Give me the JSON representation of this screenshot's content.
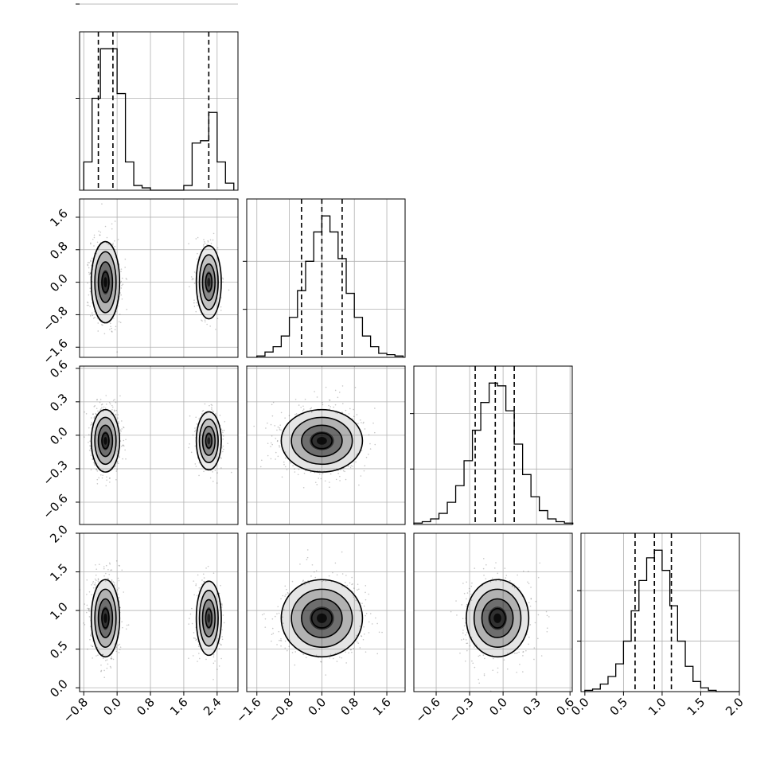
{
  "chart_data": {
    "type": "corner",
    "n_params": 4,
    "grid": true,
    "quantile_lines": "dashed",
    "contour_color": "#000000",
    "density_color": "#000000",
    "axes": [
      {
        "range": [
          -0.9,
          2.9
        ],
        "ticks": [
          -0.8,
          0.0,
          0.8,
          1.6,
          2.4
        ],
        "tick_labels": [
          "−0.8",
          "0.0",
          "0.8",
          "1.6",
          "2.4"
        ],
        "quantiles": [
          -0.45,
          -0.1,
          2.2
        ]
      },
      {
        "range": [
          -1.85,
          2.05
        ],
        "ticks": [
          -1.6,
          -0.8,
          0.0,
          0.8,
          1.6
        ],
        "tick_labels": [
          "−1.6",
          "−0.8",
          "0.0",
          "0.8",
          "1.6"
        ],
        "quantiles": [
          -0.5,
          0.0,
          0.5
        ]
      },
      {
        "range": [
          -0.8,
          0.62
        ],
        "ticks": [
          -0.6,
          -0.3,
          0.0,
          0.3,
          0.6
        ],
        "tick_labels": [
          "−0.6",
          "−0.3",
          "0.0",
          "0.3",
          "0.6"
        ],
        "quantiles": [
          -0.25,
          -0.07,
          0.1
        ]
      },
      {
        "range": [
          -0.05,
          2.0
        ],
        "ticks": [
          0.0,
          0.5,
          1.0,
          1.5,
          2.0
        ],
        "tick_labels": [
          "0.0",
          "0.5",
          "1.0",
          "1.5",
          "2.0"
        ],
        "quantiles": [
          0.65,
          0.9,
          1.12
        ]
      }
    ],
    "histograms": [
      {
        "param": 0,
        "bin_edges": [
          -0.8,
          -0.6,
          -0.4,
          -0.2,
          0.0,
          0.2,
          0.4,
          0.6,
          0.8,
          1.0,
          1.2,
          1.4,
          1.6,
          1.8,
          2.0,
          2.2,
          2.4,
          2.6,
          2.8
        ],
        "counts": [
          0.12,
          0.39,
          0.6,
          0.6,
          0.41,
          0.12,
          0.02,
          0.01,
          0,
          0,
          0,
          0,
          0.02,
          0.2,
          0.21,
          0.33,
          0.12,
          0.03
        ],
        "y_ticks": [
          0.39,
          0.79
        ]
      },
      {
        "param": 1,
        "bin_edges": [
          -1.6,
          -1.4,
          -1.2,
          -1.0,
          -0.8,
          -0.6,
          -0.4,
          -0.2,
          0.0,
          0.2,
          0.4,
          0.6,
          0.8,
          1.0,
          1.2,
          1.4,
          1.6,
          1.8,
          2.0
        ],
        "counts": [
          0.005,
          0.02,
          0.04,
          0.08,
          0.15,
          0.25,
          0.36,
          0.47,
          0.53,
          0.47,
          0.37,
          0.24,
          0.15,
          0.08,
          0.04,
          0.015,
          0.01,
          0.005
        ],
        "y_ticks": [
          0.18,
          0.36
        ]
      },
      {
        "param": 2,
        "bin_edges": [
          -0.8,
          -0.725,
          -0.65,
          -0.575,
          -0.5,
          -0.425,
          -0.35,
          -0.275,
          -0.2,
          -0.125,
          -0.05,
          0.025,
          0.1,
          0.175,
          0.25,
          0.325,
          0.4,
          0.475,
          0.55,
          0.625
        ],
        "counts": [
          0.005,
          0.01,
          0.02,
          0.04,
          0.08,
          0.14,
          0.23,
          0.34,
          0.44,
          0.51,
          0.5,
          0.41,
          0.29,
          0.18,
          0.1,
          0.05,
          0.02,
          0.01,
          0.005
        ],
        "y_ticks": [
          0.2,
          0.4
        ]
      },
      {
        "param": 3,
        "bin_edges": [
          0.0,
          0.1,
          0.2,
          0.3,
          0.4,
          0.5,
          0.6,
          0.7,
          0.8,
          0.9,
          1.0,
          1.1,
          1.2,
          1.3,
          1.4,
          1.5,
          1.6,
          1.7,
          1.8,
          1.9,
          2.0
        ],
        "counts": [
          0.005,
          0.01,
          0.03,
          0.06,
          0.11,
          0.2,
          0.32,
          0.44,
          0.53,
          0.56,
          0.48,
          0.34,
          0.2,
          0.1,
          0.04,
          0.015,
          0.005,
          0,
          0,
          0
        ],
        "y_ticks": [
          0.2,
          0.4
        ]
      }
    ],
    "pairs": [
      {
        "x_param": 0,
        "y_param": 1,
        "modes": [
          {
            "x": -0.28,
            "y": 0.0,
            "sx": 0.17,
            "sy": 0.5,
            "weight": 1.0
          },
          {
            "x": 2.2,
            "y": 0.0,
            "sx": 0.15,
            "sy": 0.45,
            "weight": 0.5
          }
        ]
      },
      {
        "x_param": 0,
        "y_param": 2,
        "modes": [
          {
            "x": -0.28,
            "y": -0.05,
            "sx": 0.17,
            "sy": 0.14,
            "weight": 1.0
          },
          {
            "x": 2.2,
            "y": -0.05,
            "sx": 0.15,
            "sy": 0.13,
            "weight": 0.5
          }
        ]
      },
      {
        "x_param": 1,
        "y_param": 2,
        "modes": [
          {
            "x": 0.0,
            "y": -0.05,
            "sx": 0.5,
            "sy": 0.14,
            "weight": 1.0
          }
        ]
      },
      {
        "x_param": 0,
        "y_param": 3,
        "modes": [
          {
            "x": -0.28,
            "y": 0.9,
            "sx": 0.17,
            "sy": 0.25,
            "weight": 1.0
          },
          {
            "x": 2.2,
            "y": 0.9,
            "sx": 0.15,
            "sy": 0.24,
            "weight": 0.5
          }
        ]
      },
      {
        "x_param": 1,
        "y_param": 3,
        "modes": [
          {
            "x": 0.0,
            "y": 0.9,
            "sx": 0.5,
            "sy": 0.25,
            "weight": 1.0
          }
        ]
      },
      {
        "x_param": 2,
        "y_param": 3,
        "modes": [
          {
            "x": -0.05,
            "y": 0.9,
            "sx": 0.14,
            "sy": 0.25,
            "weight": 1.0
          }
        ]
      }
    ],
    "contour_levels_sigma": [
      0.5,
      1.0,
      1.5,
      2.0
    ]
  }
}
